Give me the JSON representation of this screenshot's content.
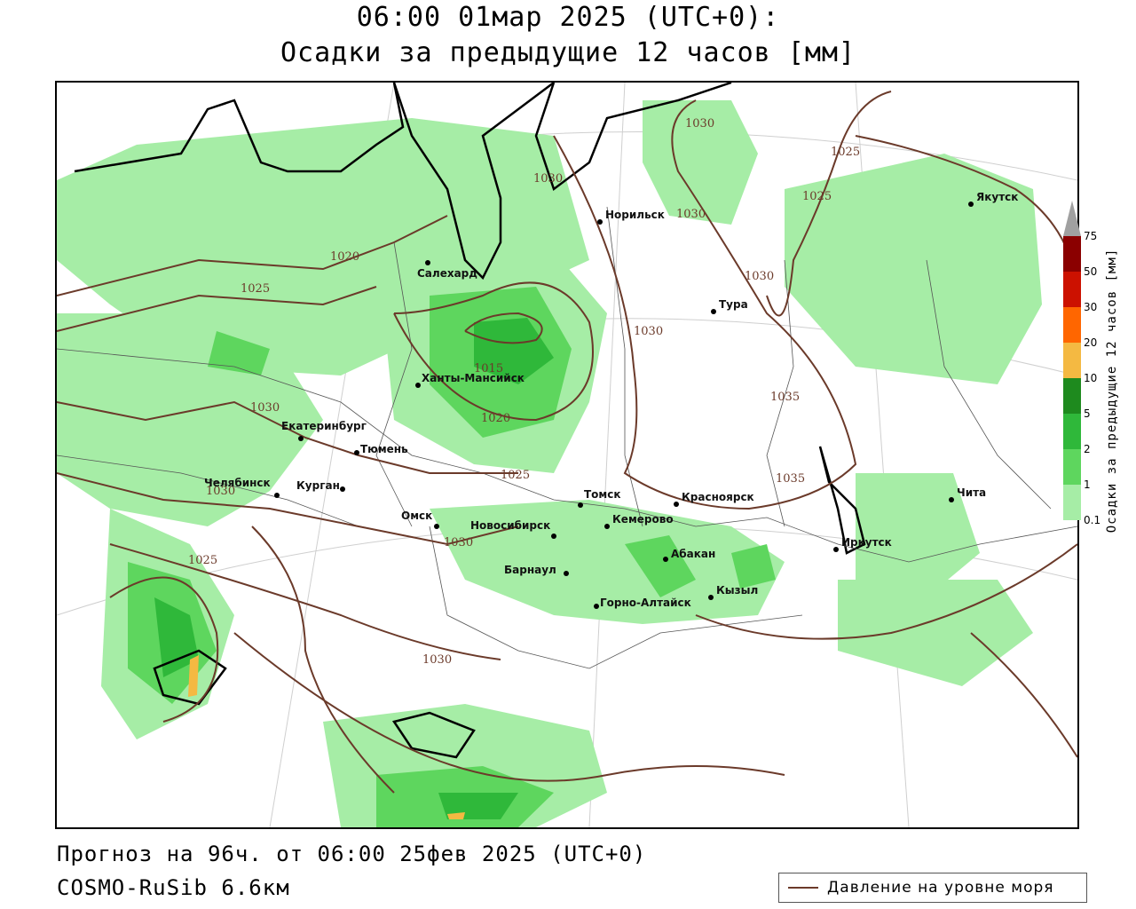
{
  "title": {
    "line1": "06:00 01мар 2025 (UTC+0):",
    "line2": "Осадки за предыдущие 12 часов [мм]"
  },
  "footer": {
    "forecast": "Прогноз на 96ч. от 06:00 25фев 2025 (UTC+0)",
    "model": "COSMO-RuSib 6.6км"
  },
  "legend": {
    "pressure_label": "Давление на уровне моря",
    "pressure_color": "#6b3a2a"
  },
  "colorbar": {
    "title": "Осадки за предыдущие 12 часов [мм]",
    "ticks": [
      "75",
      "50",
      "30",
      "20",
      "10",
      "5",
      "2",
      "1",
      "0.1"
    ],
    "colors": [
      "#a0a0a0",
      "#8b0000",
      "#cc1100",
      "#ff6600",
      "#f4b942",
      "#1e8a1e",
      "#2fb83a",
      "#5ed65e",
      "#a6eda6"
    ]
  },
  "cities": [
    {
      "name": "Норильск"
    },
    {
      "name": "Якутск"
    },
    {
      "name": "Салехард"
    },
    {
      "name": "Тура"
    },
    {
      "name": "Ханты-Мансийск"
    },
    {
      "name": "Екатеринбург"
    },
    {
      "name": "Тюмень"
    },
    {
      "name": "Челябинск"
    },
    {
      "name": "Курган"
    },
    {
      "name": "Омск"
    },
    {
      "name": "Новосибирск"
    },
    {
      "name": "Томск"
    },
    {
      "name": "Кемерово"
    },
    {
      "name": "Красноярск"
    },
    {
      "name": "Абакан"
    },
    {
      "name": "Барнаул"
    },
    {
      "name": "Горно-Алтайск"
    },
    {
      "name": "Кызыл"
    },
    {
      "name": "Иркутск"
    },
    {
      "name": "Чита"
    }
  ],
  "isobar_labels": [
    "1030",
    "1025",
    "1025",
    "1030",
    "1030",
    "1030",
    "1020",
    "1025",
    "1030",
    "1035",
    "1015",
    "1020",
    "1025",
    "1030",
    "1035",
    "1030",
    "1030",
    "1025",
    "1030"
  ]
}
